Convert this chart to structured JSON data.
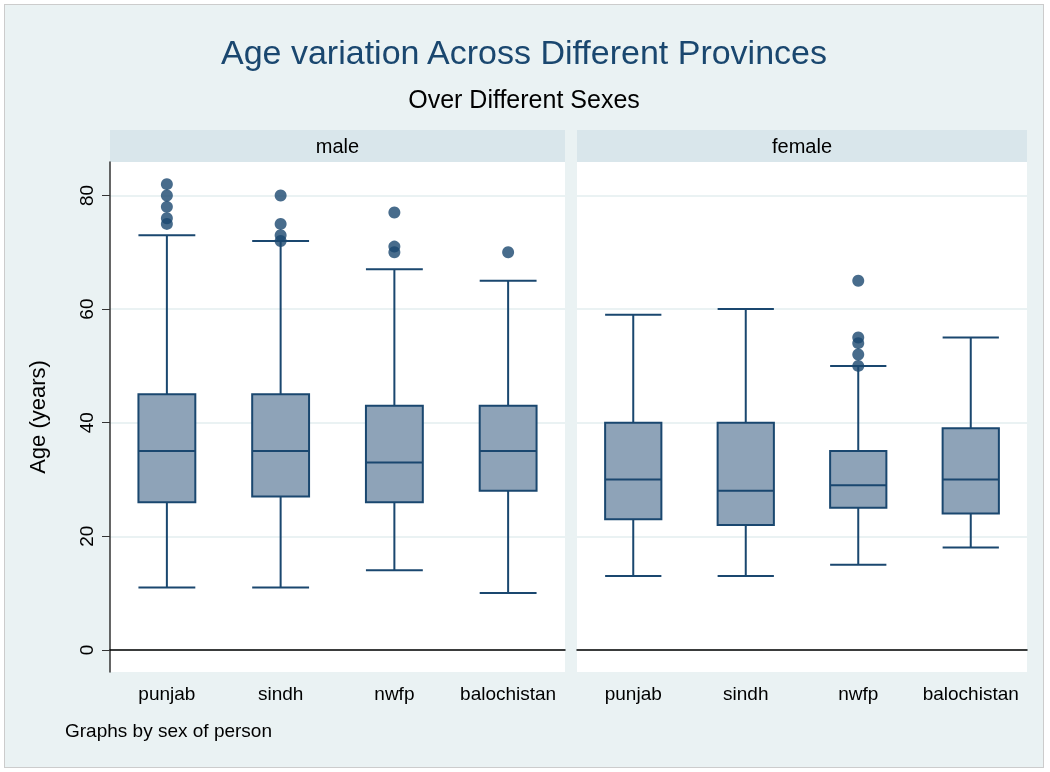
{
  "chart_data": [
    {
      "type": "other",
      "title": "Age variation Across Different Provinces",
      "subtitle": "Over Different Sexes",
      "annotations": [
        "Graphs by sex of person"
      ]
    },
    {
      "type": "box",
      "title": "male",
      "ylabel": "Age (years)",
      "categories": [
        "punjab",
        "sindh",
        "nwfp",
        "balochistan"
      ],
      "ylim": [
        -3.9,
        85.9
      ],
      "yticks": [
        0,
        20,
        40,
        60,
        80
      ],
      "grid": "y",
      "series": [
        {
          "color": "#8ea3b8",
          "boxes": [
            {
              "low": 11,
              "q1": 26,
              "median": 35,
              "q3": 45,
              "high": 73,
              "outliers": [
                75,
                76,
                78,
                80,
                82
              ]
            },
            {
              "low": 11,
              "q1": 27,
              "median": 35,
              "q3": 45,
              "high": 72,
              "outliers": [
                72,
                73,
                75,
                80
              ]
            },
            {
              "low": 14,
              "q1": 26,
              "median": 33,
              "q3": 43,
              "high": 67,
              "outliers": [
                70,
                71,
                77
              ]
            },
            {
              "low": 10,
              "q1": 28,
              "median": 35,
              "q3": 43,
              "high": 65,
              "outliers": [
                70
              ]
            }
          ]
        }
      ]
    },
    {
      "type": "box",
      "title": "female",
      "categories": [
        "punjab",
        "sindh",
        "nwfp",
        "balochistan"
      ],
      "ylim": [
        -3.9,
        85.9
      ],
      "yticks": [
        0,
        20,
        40,
        60,
        80
      ],
      "grid": "y",
      "tick_labels": "x",
      "series": [
        {
          "color": "#8ea3b8",
          "boxes": [
            {
              "low": 13,
              "q1": 23,
              "median": 30,
              "q3": 40,
              "high": 59
            },
            {
              "low": 13,
              "q1": 22,
              "median": 28,
              "q3": 40,
              "high": 60
            },
            {
              "low": 15,
              "q1": 25,
              "median": 29,
              "q3": 35,
              "high": 50,
              "outliers": [
                50,
                52,
                54,
                55,
                65
              ]
            },
            {
              "low": 18,
              "q1": 24,
              "median": 30,
              "q3": 39,
              "high": 55
            }
          ]
        }
      ]
    }
  ]
}
